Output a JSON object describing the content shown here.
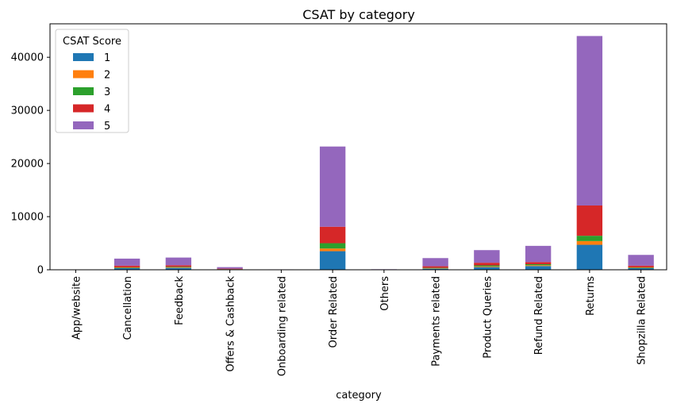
{
  "chart_data": {
    "type": "bar",
    "stacked": true,
    "title": "CSAT by category",
    "xlabel": "category",
    "ylabel": "",
    "ylim": [
      0,
      46300
    ],
    "yticks": [
      0,
      10000,
      20000,
      30000,
      40000
    ],
    "grid": false,
    "legend": {
      "title": "CSAT Score",
      "placement": "top-left"
    },
    "categories": [
      "App/website",
      "Cancellation",
      "Feedback",
      "Offers & Cashback",
      "Onboarding related",
      "Order Related",
      "Others",
      "Payments related",
      "Product Queries",
      "Refund Related",
      "Returns",
      "Shopzilla Related"
    ],
    "series": [
      {
        "name": "1",
        "color": "#1f77b4",
        "values": [
          15,
          300,
          350,
          60,
          10,
          3500,
          20,
          200,
          500,
          700,
          4700,
          300
        ]
      },
      {
        "name": "2",
        "color": "#ff7f0e",
        "values": [
          5,
          70,
          80,
          20,
          3,
          500,
          5,
          60,
          120,
          150,
          700,
          70
        ]
      },
      {
        "name": "3",
        "color": "#2ca02c",
        "values": [
          5,
          100,
          120,
          30,
          5,
          1000,
          5,
          100,
          200,
          200,
          1000,
          100
        ]
      },
      {
        "name": "4",
        "color": "#d62728",
        "values": [
          10,
          300,
          300,
          100,
          10,
          3100,
          10,
          300,
          500,
          400,
          5700,
          300
        ]
      },
      {
        "name": "5",
        "color": "#9467bd",
        "values": [
          40,
          1330,
          1450,
          290,
          50,
          15100,
          60,
          1540,
          2380,
          3050,
          31900,
          2030
        ]
      }
    ]
  }
}
